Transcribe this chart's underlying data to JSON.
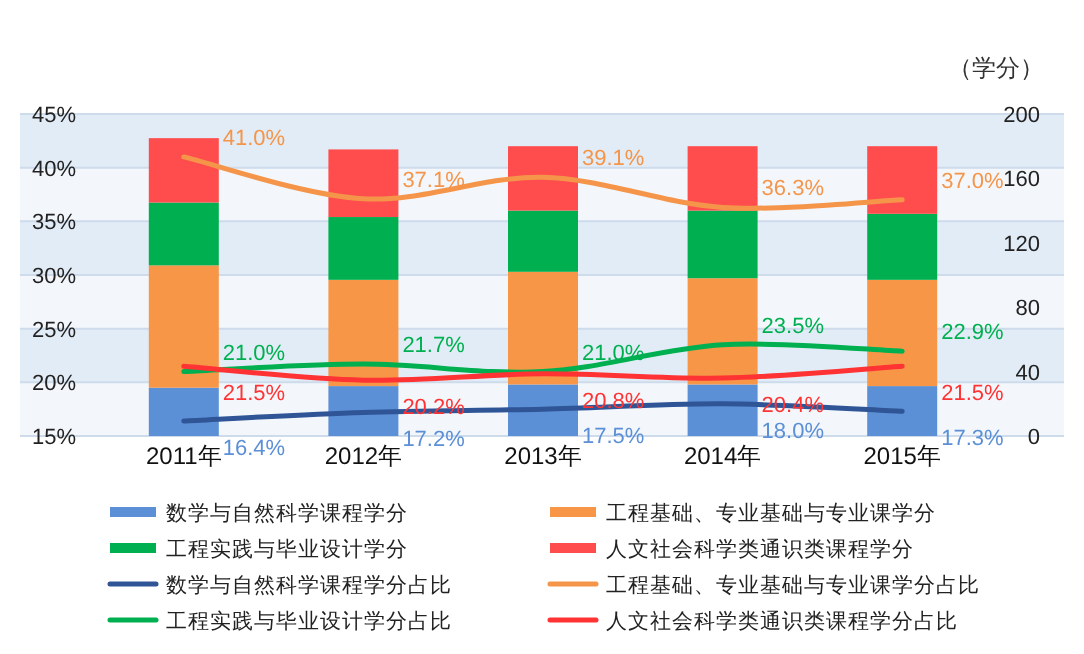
{
  "chart_data": {
    "type": "bar",
    "stacked": true,
    "categories": [
      "2011年",
      "2012年",
      "2013年",
      "2014年",
      "2015年"
    ],
    "y2label": "（学分）",
    "series": [
      {
        "name": "数学与自然科学课程学分",
        "axis": "y2",
        "color": "#5b8fd6",
        "values": [
          30,
          31,
          32,
          32,
          31
        ]
      },
      {
        "name": "工程基础、专业基础与专业课学分",
        "axis": "y2",
        "color": "#f79646",
        "values": [
          76,
          66,
          70,
          66,
          66
        ]
      },
      {
        "name": "工程实践与毕业设计学分",
        "axis": "y2",
        "color": "#00b050",
        "values": [
          39,
          39,
          38,
          42,
          41
        ]
      },
      {
        "name": "人文社会科学类通识类课程学分",
        "axis": "y2",
        "color": "#ff4d4d",
        "values": [
          40,
          42,
          40,
          40,
          42
        ]
      },
      {
        "name": "数学与自然科学课程学分占比",
        "type": "line",
        "axis": "y",
        "color": "#2f5597",
        "values": [
          16.4,
          17.2,
          17.5,
          18.0,
          17.3
        ],
        "value_labels": [
          "16.4%",
          "17.2%",
          "17.5%",
          "18.0%",
          "17.3%"
        ]
      },
      {
        "name": "工程基础、专业基础与专业课学分占比",
        "type": "line",
        "axis": "y",
        "color": "#f4954a",
        "values": [
          41.0,
          37.1,
          39.1,
          36.3,
          37.0
        ],
        "value_labels": [
          "41.0%",
          "37.1%",
          "39.1%",
          "36.3%",
          "37.0%"
        ]
      },
      {
        "name": "工程实践与毕业设计学分占比",
        "type": "line",
        "axis": "y",
        "color": "#00b050",
        "values": [
          21.0,
          21.7,
          21.0,
          23.5,
          22.9
        ],
        "value_labels": [
          "21.0%",
          "21.7%",
          "21.0%",
          "23.5%",
          "22.9%"
        ]
      },
      {
        "name": "人文社会科学类通识类课程学分占比",
        "type": "line",
        "axis": "y",
        "color": "#ff3333",
        "values": [
          21.5,
          20.2,
          20.8,
          20.4,
          21.5
        ],
        "value_labels": [
          "21.5%",
          "20.2%",
          "20.8%",
          "20.4%",
          "21.5%"
        ]
      }
    ],
    "ylim": [
      15,
      45
    ],
    "yticks": [
      {
        "value": 15,
        "label": "15%"
      },
      {
        "value": 20,
        "label": "20%"
      },
      {
        "value": 25,
        "label": "25%"
      },
      {
        "value": 30,
        "label": "30%"
      },
      {
        "value": 35,
        "label": "35%"
      },
      {
        "value": 40,
        "label": "40%"
      },
      {
        "value": 45,
        "label": "45%"
      }
    ],
    "y2lim": [
      0,
      200
    ],
    "y2ticks": [
      0,
      40,
      80,
      120,
      160,
      200
    ],
    "grid": "y",
    "legend": "bottom"
  }
}
